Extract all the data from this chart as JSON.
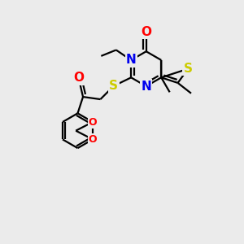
{
  "bg_color": "#ebebeb",
  "atom_colors": {
    "N": "#0000ee",
    "O": "#ff0000",
    "S": "#cccc00"
  },
  "bond_color": "#000000",
  "bond_width": 1.6,
  "font_size_atoms": 11,
  "font_size_small": 9
}
